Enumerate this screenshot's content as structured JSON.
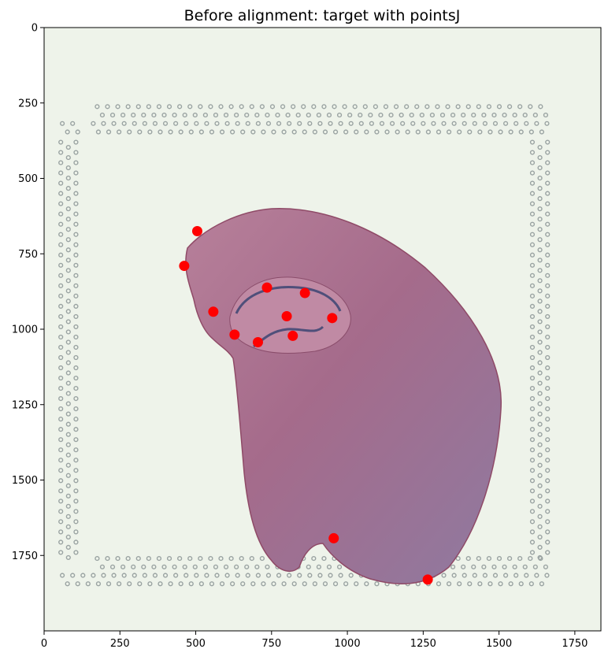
{
  "chart_data": {
    "type": "scatter",
    "title": "Before alignment: target with pointsJ",
    "xlabel": "",
    "ylabel": "",
    "xlim": [
      0,
      1836
    ],
    "ylim": [
      2000,
      0
    ],
    "y_axis_inverted": true,
    "grid": false,
    "x_ticks": [
      0,
      250,
      500,
      750,
      1000,
      1250,
      1500,
      1750
    ],
    "x_tick_labels": [
      "0",
      "250",
      "500",
      "750",
      "1000",
      "1250",
      "1500",
      "1750"
    ],
    "y_ticks": [
      0,
      250,
      500,
      750,
      1000,
      1250,
      1500,
      1750
    ],
    "y_tick_labels": [
      "0",
      "250",
      "500",
      "750",
      "1000",
      "1250",
      "1500",
      "1750"
    ],
    "background": "brightfield H&E tissue image on slide with fiducial spot frame",
    "points": [
      {
        "x": 505,
        "y": 675
      },
      {
        "x": 462,
        "y": 790
      },
      {
        "x": 735,
        "y": 862
      },
      {
        "x": 860,
        "y": 880
      },
      {
        "x": 558,
        "y": 942
      },
      {
        "x": 800,
        "y": 957
      },
      {
        "x": 950,
        "y": 963
      },
      {
        "x": 628,
        "y": 1018
      },
      {
        "x": 820,
        "y": 1022
      },
      {
        "x": 705,
        "y": 1043
      },
      {
        "x": 955,
        "y": 1693
      },
      {
        "x": 1265,
        "y": 1830
      }
    ],
    "marker_color": "#ff0000"
  },
  "colors": {
    "slide_background": "#eef3ea",
    "tissue_fill": "#b67a95",
    "tissue_edge": "#8f4a67",
    "fiducial": "#9aa3a2",
    "point": "#ff0000"
  }
}
